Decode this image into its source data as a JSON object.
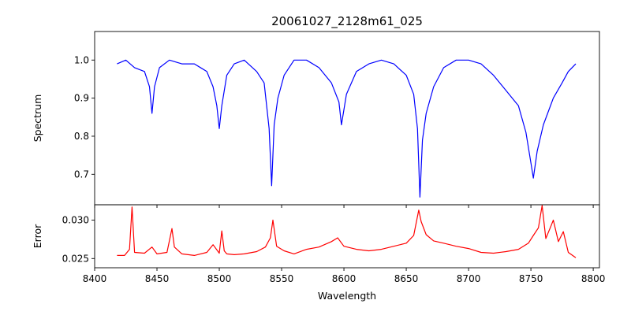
{
  "chart_data": [
    {
      "panel": "spectrum",
      "type": "line",
      "title": "20061027_2128m61_025",
      "xlabel": "",
      "ylabel": "Spectrum",
      "xlim": [
        8400,
        8805
      ],
      "ylim": [
        0.62,
        1.075
      ],
      "xticks": [
        8400,
        8450,
        8500,
        8550,
        8600,
        8650,
        8700,
        8750,
        8800
      ],
      "yticks": [
        0.7,
        0.8,
        0.9,
        1.0
      ],
      "ytick_labels": [
        "0.7",
        "0.8",
        "0.9",
        "1.0"
      ],
      "grid": false,
      "series": [
        {
          "color": "#0000ff",
          "x": [
            8418,
            8425,
            8432,
            8440,
            8444,
            8446,
            8448,
            8452,
            8460,
            8470,
            8480,
            8490,
            8495,
            8498,
            8500,
            8502,
            8506,
            8512,
            8520,
            8530,
            8536,
            8540,
            8542,
            8544,
            8547,
            8552,
            8560,
            8570,
            8580,
            8590,
            8596,
            8598,
            8602,
            8610,
            8620,
            8630,
            8640,
            8650,
            8656,
            8659,
            8661,
            8663,
            8666,
            8672,
            8680,
            8690,
            8700,
            8710,
            8720,
            8730,
            8740,
            8746,
            8750,
            8752,
            8755,
            8760,
            8768,
            8775,
            8780,
            8786
          ],
          "y": [
            0.99,
            1.0,
            0.98,
            0.97,
            0.93,
            0.86,
            0.93,
            0.98,
            1.0,
            0.99,
            0.99,
            0.97,
            0.93,
            0.88,
            0.82,
            0.88,
            0.96,
            0.99,
            1.0,
            0.97,
            0.94,
            0.82,
            0.67,
            0.83,
            0.9,
            0.96,
            1.0,
            1.0,
            0.98,
            0.94,
            0.89,
            0.83,
            0.91,
            0.97,
            0.99,
            1.0,
            0.99,
            0.96,
            0.91,
            0.82,
            0.64,
            0.79,
            0.86,
            0.93,
            0.98,
            1.0,
            1.0,
            0.99,
            0.96,
            0.92,
            0.88,
            0.81,
            0.73,
            0.69,
            0.76,
            0.83,
            0.9,
            0.94,
            0.97,
            0.99
          ]
        }
      ]
    },
    {
      "panel": "error",
      "type": "line",
      "title": "",
      "xlabel": "Wavelength",
      "ylabel": "Error",
      "xlim": [
        8400,
        8805
      ],
      "ylim": [
        0.0238,
        0.032
      ],
      "xticks": [
        8400,
        8450,
        8500,
        8550,
        8600,
        8650,
        8700,
        8750,
        8800
      ],
      "xtick_labels": [
        "8400",
        "8450",
        "8500",
        "8550",
        "8600",
        "8650",
        "8700",
        "8750",
        "8800"
      ],
      "yticks": [
        0.025,
        0.03
      ],
      "ytick_labels": [
        "0.025",
        "0.030"
      ],
      "grid": false,
      "series": [
        {
          "color": "#ff0000",
          "x": [
            8418,
            8424,
            8428,
            8430,
            8432,
            8440,
            8446,
            8450,
            8458,
            8462,
            8464,
            8470,
            8480,
            8490,
            8495,
            8500,
            8502,
            8504,
            8506,
            8512,
            8520,
            8530,
            8537,
            8541,
            8543,
            8546,
            8552,
            8560,
            8570,
            8580,
            8590,
            8595,
            8600,
            8610,
            8620,
            8630,
            8640,
            8650,
            8656,
            8660,
            8662,
            8666,
            8672,
            8680,
            8690,
            8700,
            8710,
            8720,
            8730,
            8740,
            8748,
            8752,
            8756,
            8759,
            8762,
            8766,
            8768,
            8772,
            8776,
            8780,
            8786
          ],
          "y": [
            0.0254,
            0.0254,
            0.0262,
            0.0317,
            0.0258,
            0.0257,
            0.0265,
            0.0256,
            0.0258,
            0.0289,
            0.0265,
            0.0256,
            0.0254,
            0.0258,
            0.0268,
            0.0257,
            0.0286,
            0.026,
            0.0256,
            0.0255,
            0.0256,
            0.0259,
            0.0265,
            0.0277,
            0.03,
            0.0266,
            0.026,
            0.0256,
            0.0262,
            0.0265,
            0.0272,
            0.0277,
            0.0266,
            0.0262,
            0.026,
            0.0262,
            0.0266,
            0.027,
            0.028,
            0.0313,
            0.0298,
            0.0281,
            0.0273,
            0.027,
            0.0266,
            0.0263,
            0.0258,
            0.0257,
            0.0259,
            0.0262,
            0.027,
            0.028,
            0.029,
            0.0319,
            0.0276,
            0.0292,
            0.03,
            0.0272,
            0.0285,
            0.0258,
            0.0251
          ]
        }
      ]
    }
  ]
}
